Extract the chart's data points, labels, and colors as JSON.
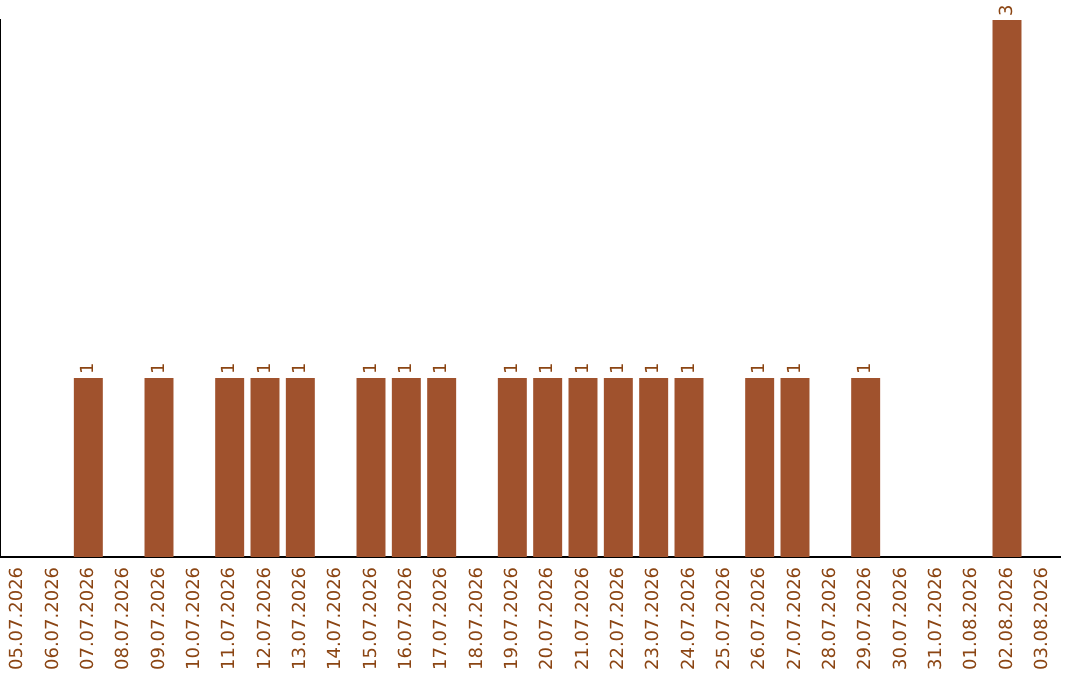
{
  "chart_data": {
    "type": "bar",
    "categories": [
      "05.07.2026",
      "06.07.2026",
      "07.07.2026",
      "08.07.2026",
      "09.07.2026",
      "10.07.2026",
      "11.07.2026",
      "12.07.2026",
      "13.07.2026",
      "14.07.2026",
      "15.07.2026",
      "16.07.2026",
      "17.07.2026",
      "18.07.2026",
      "19.07.2026",
      "20.07.2026",
      "21.07.2026",
      "22.07.2026",
      "23.07.2026",
      "24.07.2026",
      "25.07.2026",
      "26.07.2026",
      "27.07.2026",
      "28.07.2026",
      "29.07.2026",
      "30.07.2026",
      "31.07.2026",
      "01.08.2026",
      "02.08.2026",
      "03.08.2026"
    ],
    "values": [
      0,
      0,
      1,
      0,
      1,
      0,
      1,
      1,
      1,
      0,
      1,
      1,
      1,
      0,
      1,
      1,
      1,
      1,
      1,
      1,
      0,
      1,
      1,
      0,
      1,
      0,
      0,
      0,
      3,
      0
    ],
    "value_labels": [
      null,
      null,
      "1",
      null,
      "1",
      null,
      "1",
      "1",
      "1",
      null,
      "1",
      "1",
      "1",
      null,
      "1",
      "1",
      "1",
      "1",
      "1",
      "1",
      null,
      "1",
      "1",
      null,
      "1",
      null,
      null,
      null,
      "3",
      null
    ],
    "color": "#a0522d",
    "ylim": [
      0,
      3
    ],
    "tick_labels": "x",
    "grid": false,
    "legend": false
  }
}
